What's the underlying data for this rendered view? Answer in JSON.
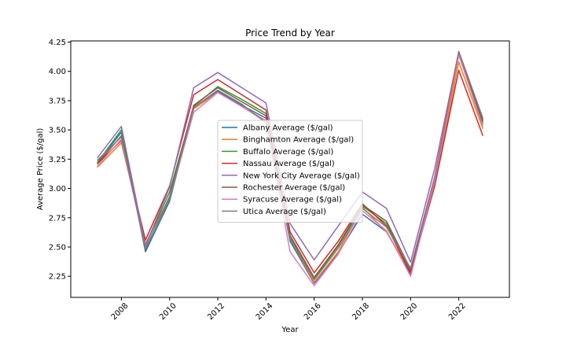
{
  "chart_data": {
    "type": "line",
    "title": "Price Trend by Year",
    "xlabel": "Year",
    "ylabel": "Average Price ($/gal)",
    "x": [
      2007,
      2008,
      2009,
      2010,
      2011,
      2012,
      2013,
      2014,
      2015,
      2016,
      2017,
      2018,
      2019,
      2020,
      2021,
      2022,
      2023
    ],
    "xlim": [
      2005.9,
      2024.1
    ],
    "ylim": [
      2.07,
      4.26
    ],
    "xticks": [
      2008,
      2010,
      2012,
      2014,
      2016,
      2018,
      2020,
      2022
    ],
    "xtick_labels": [
      "2008",
      "2010",
      "2012",
      "2014",
      "2016",
      "2018",
      "2020",
      "2022"
    ],
    "yticks": [
      2.25,
      2.5,
      2.75,
      3.0,
      3.25,
      3.5,
      3.75,
      4.0,
      4.25
    ],
    "ytick_labels": [
      "2.25",
      "2.50",
      "2.75",
      "3.00",
      "3.25",
      "3.50",
      "3.75",
      "4.00",
      "4.25"
    ],
    "grid": false,
    "legend_position": "center",
    "series": [
      {
        "name": "Albany Average ($/gal)",
        "color": "#1f77b4",
        "values": [
          3.22,
          3.48,
          2.46,
          2.89,
          3.68,
          3.83,
          3.71,
          3.6,
          2.55,
          2.19,
          2.45,
          2.78,
          2.63,
          2.27,
          3.04,
          4.15,
          3.58
        ]
      },
      {
        "name": "Binghamton Average ($/gal)",
        "color": "#ff7f0e",
        "values": [
          3.18,
          3.39,
          2.53,
          2.92,
          3.68,
          3.82,
          3.7,
          3.57,
          2.57,
          2.2,
          2.46,
          2.84,
          2.63,
          2.29,
          3.03,
          4.08,
          3.51
        ]
      },
      {
        "name": "Buffalo Average ($/gal)",
        "color": "#2ca02c",
        "values": [
          3.22,
          3.5,
          2.51,
          2.97,
          3.7,
          3.87,
          3.76,
          3.64,
          2.58,
          2.23,
          2.51,
          2.85,
          2.7,
          2.29,
          3.06,
          4.16,
          3.55
        ]
      },
      {
        "name": "Nassau Average ($/gal)",
        "color": "#d62728",
        "values": [
          3.21,
          3.41,
          2.56,
          3.02,
          3.8,
          3.93,
          3.8,
          3.67,
          2.63,
          2.28,
          2.55,
          2.87,
          2.68,
          2.28,
          3.02,
          4.01,
          3.45
        ]
      },
      {
        "name": "New York City Average ($/gal)",
        "color": "#9467bd",
        "values": [
          3.26,
          3.53,
          2.51,
          3.01,
          3.86,
          3.99,
          3.86,
          3.73,
          2.7,
          2.39,
          2.68,
          2.97,
          2.83,
          2.37,
          3.17,
          4.17,
          3.59
        ]
      },
      {
        "name": "Rochester Average ($/gal)",
        "color": "#8c564b",
        "values": [
          3.21,
          3.45,
          2.48,
          2.93,
          3.71,
          3.86,
          3.74,
          3.62,
          2.6,
          2.24,
          2.52,
          2.86,
          2.72,
          2.31,
          3.08,
          4.16,
          3.57
        ]
      },
      {
        "name": "Syracuse Average ($/gal)",
        "color": "#e377c2",
        "values": [
          3.19,
          3.42,
          2.49,
          2.91,
          3.65,
          3.82,
          3.7,
          3.58,
          2.46,
          2.17,
          2.44,
          2.81,
          2.64,
          2.25,
          3.06,
          4.14,
          3.53
        ]
      },
      {
        "name": "Utica Average ($/gal)",
        "color": "#7f7f7f",
        "values": [
          3.24,
          3.44,
          2.49,
          2.91,
          3.69,
          3.84,
          3.72,
          3.56,
          2.57,
          2.22,
          2.49,
          2.83,
          2.67,
          2.32,
          3.1,
          4.17,
          3.6
        ]
      }
    ]
  }
}
